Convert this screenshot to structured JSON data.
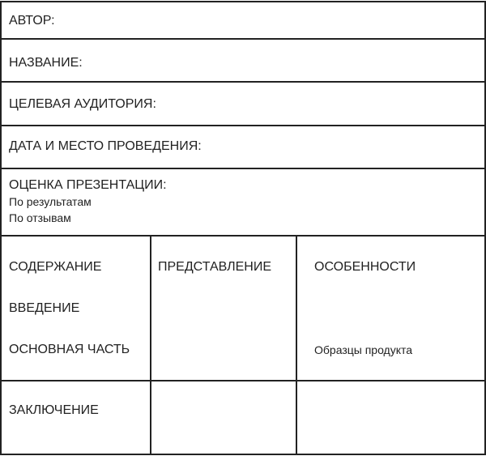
{
  "form": {
    "author": "АВТОР:",
    "title": "НАЗВАНИЕ:",
    "audience": "ЦЕЛЕВАЯ АУДИТОРИЯ:",
    "date_place": "ДАТА И МЕСТО ПРОВЕДЕНИЯ:",
    "evaluation": {
      "heading": "ОЦЕНКА ПРЕЗЕНТАЦИИ:",
      "items": [
        "По результатам",
        "По отзывам"
      ]
    },
    "grid": {
      "content": "СОДЕРЖАНИЕ",
      "intro": "ВВЕДЕНИЕ",
      "main_part": "ОСНОВНАЯ ЧАСТЬ",
      "presentation": "ПРЕДСТАВЛЕНИЕ",
      "features": "ОСОБЕННОСТИ",
      "samples": "Образцы продукта",
      "conclusion": "ЗАКЛЮЧЕНИЕ"
    }
  }
}
